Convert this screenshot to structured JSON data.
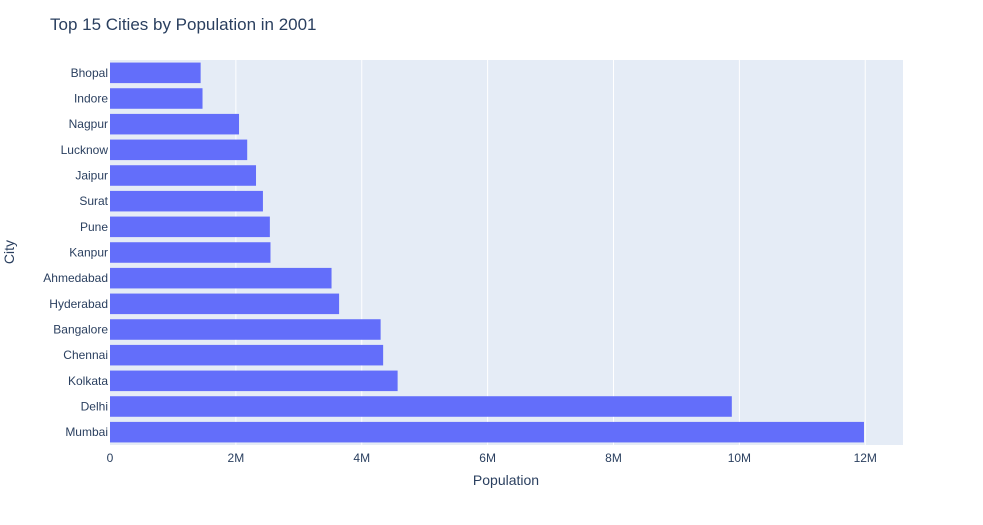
{
  "chart_data": {
    "type": "bar",
    "orientation": "horizontal",
    "title": "Top 15 Cities by Population in 2001",
    "xlabel": "Population",
    "ylabel": "City",
    "xlim": [
      0,
      12600000
    ],
    "grid": true,
    "legend": "none",
    "bar_color": "#636efa",
    "plot_background": "#e5ecf6",
    "xticks": [
      {
        "value": 0,
        "label": "0"
      },
      {
        "value": 2000000,
        "label": "2M"
      },
      {
        "value": 4000000,
        "label": "4M"
      },
      {
        "value": 6000000,
        "label": "6M"
      },
      {
        "value": 8000000,
        "label": "8M"
      },
      {
        "value": 10000000,
        "label": "10M"
      },
      {
        "value": 12000000,
        "label": "12M"
      }
    ],
    "categories": [
      "Bhopal",
      "Indore",
      "Nagpur",
      "Lucknow",
      "Jaipur",
      "Surat",
      "Pune",
      "Kanpur",
      "Ahmedabad",
      "Hyderabad",
      "Bangalore",
      "Chennai",
      "Kolkata",
      "Delhi",
      "Mumbai"
    ],
    "values": [
      1440000,
      1470000,
      2050000,
      2180000,
      2320000,
      2430000,
      2540000,
      2550000,
      3520000,
      3640000,
      4300000,
      4340000,
      4570000,
      9880000,
      11980000
    ]
  }
}
